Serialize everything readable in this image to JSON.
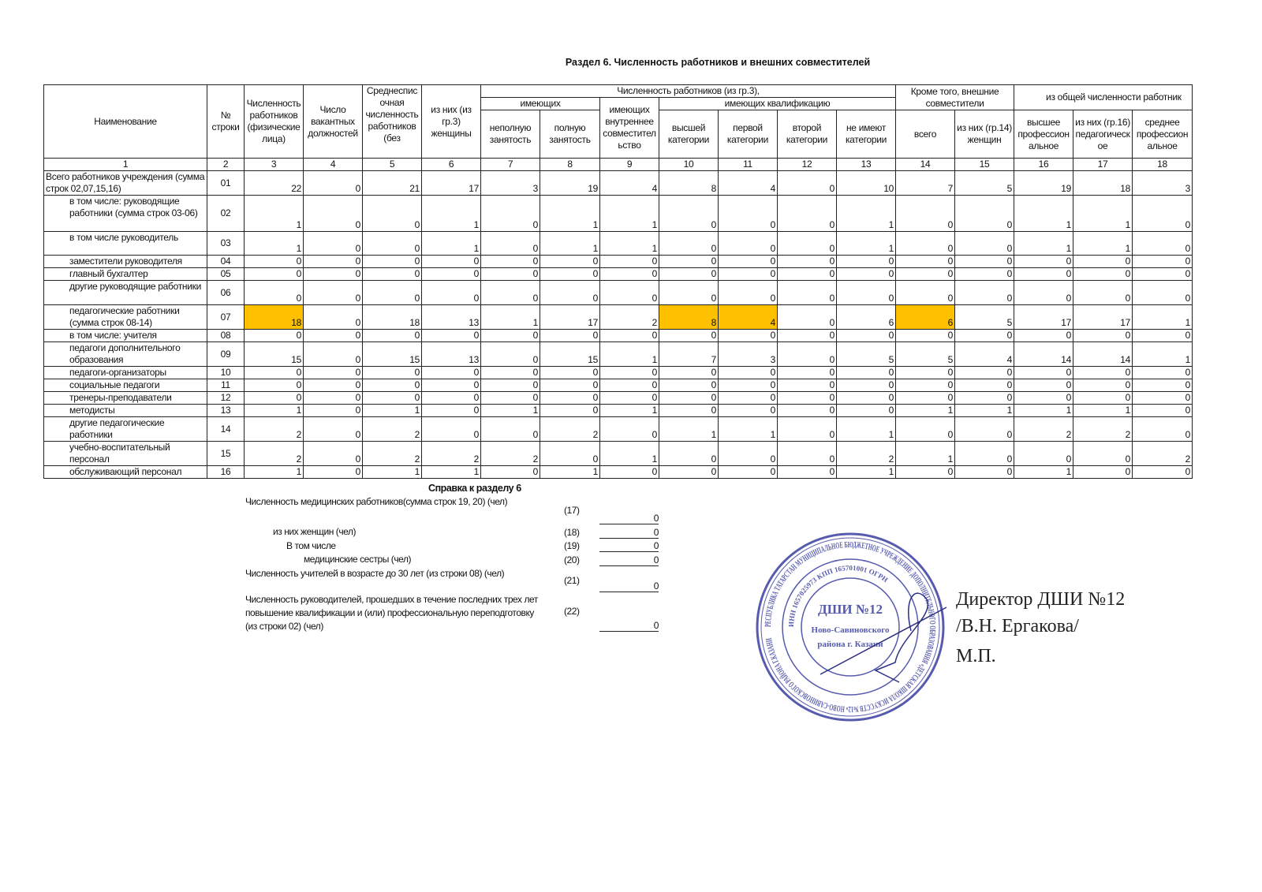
{
  "title": "Раздел 6. Численность работников и внешних совместителей",
  "header": {
    "col1": "Наименование",
    "col2": "№ строки",
    "col3": "Численность работников (физические лица)",
    "col4": "Число вакантных должностей",
    "col5": "Среднесписочная численность работников (без",
    "col6": "из них (из гр.3) женщины",
    "group_7_13": "Численность работников (из гр.3),",
    "group_7_8": "имеющих",
    "col7": "неполную занятость",
    "col8": "полную занятость",
    "col9": "имеющих внутреннее совместительство",
    "group_10_13": "имеющих квалификацию",
    "col10": "высшей категории",
    "col11": "первой категории",
    "col12": "второй категории",
    "col13": "не имеют категории",
    "group_14_15": "Кроме того, внешние совместители",
    "col14": "всего",
    "col15": "из них (гр.14) женщин",
    "group_16_18": "из общей численности работник",
    "col16": "высшее профессиональное",
    "col17": "из них (гр.16) педагогическое",
    "col18": "среднее профессиональное"
  },
  "column_numbers": [
    "1",
    "2",
    "3",
    "4",
    "5",
    "6",
    "7",
    "8",
    "9",
    "10",
    "11",
    "12",
    "13",
    "14",
    "15",
    "16",
    "17",
    "18"
  ],
  "highlight_color": "#ffc000",
  "rows": [
    {
      "name": "Всего работников учреждения (сумма строк 02,07,15,16)",
      "code": "01",
      "indent": 0,
      "values": [
        "22",
        "0",
        "21",
        "17",
        "3",
        "19",
        "4",
        "8",
        "4",
        "0",
        "10",
        "7",
        "5",
        "19",
        "18",
        "3"
      ]
    },
    {
      "name": "в том числе: руководящие работники (сумма строк 03-06)",
      "code": "02",
      "indent": 1,
      "values": [
        "1",
        "0",
        "0",
        "1",
        "0",
        "1",
        "1",
        "0",
        "0",
        "0",
        "1",
        "0",
        "0",
        "1",
        "1",
        "0"
      ]
    },
    {
      "name": "в том числе руководитель",
      "code": "03",
      "indent": 1,
      "values": [
        "1",
        "0",
        "0",
        "1",
        "0",
        "1",
        "1",
        "0",
        "0",
        "0",
        "1",
        "0",
        "0",
        "1",
        "1",
        "0"
      ]
    },
    {
      "name": "заместители руководителя",
      "code": "04",
      "indent": 1,
      "values": [
        "0",
        "0",
        "0",
        "0",
        "0",
        "0",
        "0",
        "0",
        "0",
        "0",
        "0",
        "0",
        "0",
        "0",
        "0",
        "0"
      ]
    },
    {
      "name": "главный бухгалтер",
      "code": "05",
      "indent": 1,
      "values": [
        "0",
        "0",
        "0",
        "0",
        "0",
        "0",
        "0",
        "0",
        "0",
        "0",
        "0",
        "0",
        "0",
        "0",
        "0",
        "0"
      ]
    },
    {
      "name": "другие руководящие работники",
      "code": "06",
      "indent": 1,
      "values": [
        "0",
        "0",
        "0",
        "0",
        "0",
        "0",
        "0",
        "0",
        "0",
        "0",
        "0",
        "0",
        "0",
        "0",
        "0",
        "0"
      ]
    },
    {
      "name": "педагогические работники (сумма строк 08-14)",
      "code": "07",
      "indent": 1,
      "values": [
        "18",
        "0",
        "18",
        "13",
        "1",
        "17",
        "2",
        "8",
        "4",
        "0",
        "6",
        "6",
        "5",
        "17",
        "17",
        "1"
      ],
      "highlighted_columns": [
        "3",
        "10",
        "11",
        "14"
      ]
    },
    {
      "name": "в том числе: учителя",
      "code": "08",
      "indent": 1,
      "values": [
        "0",
        "0",
        "0",
        "0",
        "0",
        "0",
        "0",
        "0",
        "0",
        "0",
        "0",
        "0",
        "0",
        "0",
        "0",
        "0"
      ]
    },
    {
      "name": "педагоги дополнительного образования",
      "code": "09",
      "indent": 1,
      "values": [
        "15",
        "0",
        "15",
        "13",
        "0",
        "15",
        "1",
        "7",
        "3",
        "0",
        "5",
        "5",
        "4",
        "14",
        "14",
        "1"
      ]
    },
    {
      "name": "педагоги-организаторы",
      "code": "10",
      "indent": 1,
      "values": [
        "0",
        "0",
        "0",
        "0",
        "0",
        "0",
        "0",
        "0",
        "0",
        "0",
        "0",
        "0",
        "0",
        "0",
        "0",
        "0"
      ]
    },
    {
      "name": "социальные педагоги",
      "code": "11",
      "indent": 1,
      "values": [
        "0",
        "0",
        "0",
        "0",
        "0",
        "0",
        "0",
        "0",
        "0",
        "0",
        "0",
        "0",
        "0",
        "0",
        "0",
        "0"
      ]
    },
    {
      "name": "тренеры-преподаватели",
      "code": "12",
      "indent": 1,
      "values": [
        "0",
        "0",
        "0",
        "0",
        "0",
        "0",
        "0",
        "0",
        "0",
        "0",
        "0",
        "0",
        "0",
        "0",
        "0",
        "0"
      ]
    },
    {
      "name": "методисты",
      "code": "13",
      "indent": 1,
      "values": [
        "1",
        "0",
        "1",
        "0",
        "1",
        "0",
        "1",
        "0",
        "0",
        "0",
        "0",
        "1",
        "1",
        "1",
        "1",
        "0"
      ]
    },
    {
      "name": "другие педагогические работники",
      "code": "14",
      "indent": 1,
      "values": [
        "2",
        "0",
        "2",
        "0",
        "0",
        "2",
        "0",
        "1",
        "1",
        "0",
        "1",
        "0",
        "0",
        "2",
        "2",
        "0"
      ]
    },
    {
      "name": "учебно-воспитательный персонал",
      "code": "15",
      "indent": 1,
      "values": [
        "2",
        "0",
        "2",
        "2",
        "2",
        "0",
        "1",
        "0",
        "0",
        "0",
        "2",
        "1",
        "0",
        "0",
        "0",
        "2"
      ]
    },
    {
      "name": "обслуживающий персонал",
      "code": "16",
      "indent": 1,
      "values": [
        "1",
        "0",
        "1",
        "1",
        "0",
        "1",
        "0",
        "0",
        "0",
        "0",
        "1",
        "0",
        "0",
        "1",
        "0",
        "0"
      ]
    }
  ],
  "reference": {
    "title": "Справка к разделу 6",
    "items": [
      {
        "label": "Численность медицинских работников(сумма строк 19, 20) (чел)",
        "code": "(17)",
        "value": "0"
      },
      {
        "label": "из них женщин (чел)",
        "code": "(18)",
        "value": "0"
      },
      {
        "label": "В том числе",
        "code": "(19)",
        "value": "0"
      },
      {
        "label": "медицинские сестры (чел)",
        "code": "(20)",
        "value": "0"
      },
      {
        "label": "Численность учителей в возрасте до 30 лет (из строки 08) (чел)",
        "code": "(21)",
        "value": "0"
      },
      {
        "label": "Численность руководителей, прошедших в течение последних трех лет повышение квалификации и (или) профессиональную переподготовку (из строки 02) (чел)",
        "code": "(22)",
        "value": "0"
      }
    ]
  },
  "signature": {
    "position": "Директор ДШИ №12",
    "name": "/В.Н. Ергакова/",
    "mp": "М.П."
  },
  "stamp": {
    "outer_text": "РЕСПУБЛИКА ТАТАРСТАН МУНИЦИПАЛЬНОЕ БЮДЖЕТНОЕ УЧРЕЖДЕНИЕ ДОПОЛНИТЕЛЬНОГО ОБРАЗОВАНИЯ «ДЕТСКАЯ ШКОЛА ИСКУССТВ №12» НОВО-САВИНОВСКОГО РАЙОНА Г.КАЗАНИ",
    "inner_text": "ИНН 1657025973 КПП 165701001 ОГРН",
    "center_text": [
      "ДШИ №12",
      "Ново-Савиновского",
      "района г. Казани"
    ],
    "color": "#3a3fa0"
  }
}
